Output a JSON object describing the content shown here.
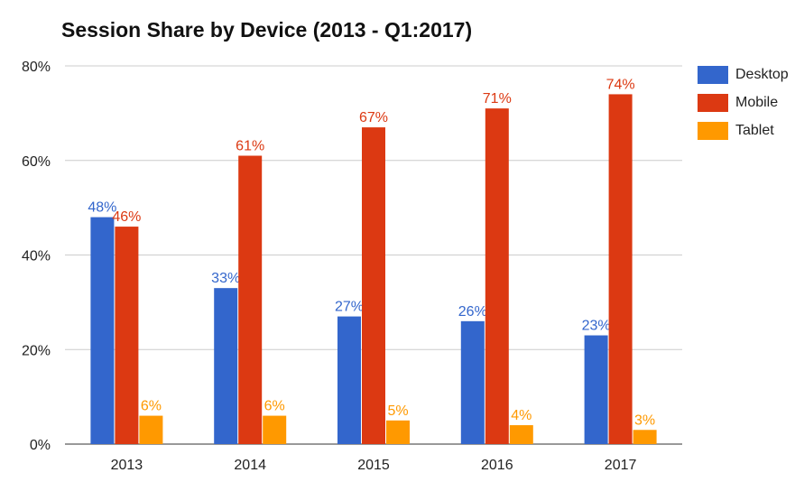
{
  "chart_data": {
    "type": "bar",
    "title": "Session Share by Device (2013 - Q1:2017)",
    "xlabel": "",
    "ylabel": "",
    "categories": [
      "2013",
      "2014",
      "2015",
      "2016",
      "2017"
    ],
    "series": [
      {
        "name": "Desktop",
        "color": "#3366cc",
        "values": [
          48,
          33,
          27,
          26,
          23
        ],
        "labels": [
          "48%",
          "33%",
          "27%",
          "26%",
          "23%"
        ]
      },
      {
        "name": "Mobile",
        "color": "#dc3912",
        "values": [
          46,
          61,
          67,
          71,
          74
        ],
        "labels": [
          "46%",
          "61%",
          "67%",
          "71%",
          "74%"
        ]
      },
      {
        "name": "Tablet",
        "color": "#ff9900",
        "values": [
          6,
          6,
          5,
          4,
          3
        ],
        "labels": [
          "6%",
          "6%",
          "5%",
          "4%",
          "3%"
        ]
      }
    ],
    "ylim": [
      0,
      80
    ],
    "yticks": [
      0,
      20,
      40,
      60,
      80
    ],
    "ytick_labels": [
      "0%",
      "20%",
      "40%",
      "60%",
      "80%"
    ],
    "grid": true,
    "legend": "right"
  }
}
